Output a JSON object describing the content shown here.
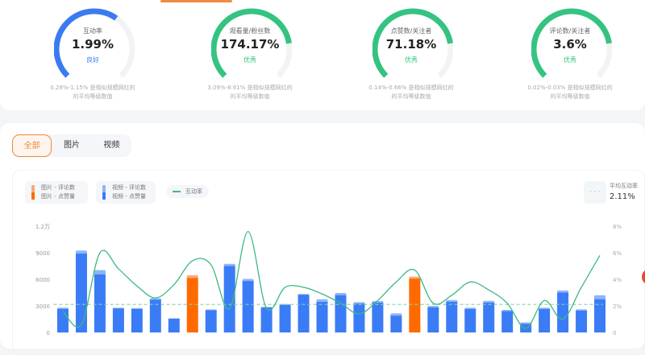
{
  "metrics": [
    {
      "label": "互动率",
      "value": "1.99%",
      "level": "良好",
      "color": "#3a7cf0",
      "fill": 0.63,
      "desc1": "0.28%-1.15% 是相似规模网红的",
      "desc2": "的平均等级数值"
    },
    {
      "label": "观看量/粉丝数",
      "value": "174.17%",
      "level": "优秀",
      "color": "#34c381",
      "fill": 0.8,
      "desc1": "3.09%-8.61% 是相似规模网红的",
      "desc2": "的平均等级数值"
    },
    {
      "label": "点赞数/关注者",
      "value": "71.18%",
      "level": "优秀",
      "color": "#34c381",
      "fill": 0.8,
      "desc1": "0.14%-0.66% 是相似规模网红的",
      "desc2": "的平均等级数值"
    },
    {
      "label": "评论数/关注者",
      "value": "3.6%",
      "level": "优秀",
      "color": "#34c381",
      "fill": 0.8,
      "desc1": "0.02%-0.03% 是相似规模网红的",
      "desc2": "的平均等级数值"
    }
  ],
  "tabs": [
    "全部",
    "图片",
    "视频"
  ],
  "legend": {
    "image_comments": "图片 - 评论数",
    "image_likes": "图片 - 点赞量",
    "video_comments": "视频 - 评论数",
    "video_likes": "视频 - 点赞量",
    "rate": "互动率",
    "avg_label": "平均互动率",
    "avg_value": "2.11%",
    "avg_icon": "- - -"
  },
  "chart_data": {
    "type": "bar+line",
    "left_axis": {
      "ticks": [
        "0",
        "3000",
        "6000",
        "9000",
        "1.2万"
      ],
      "range": [
        0,
        12000
      ]
    },
    "right_axis": {
      "ticks": [
        "0",
        "2%",
        "4%",
        "6%",
        "8%"
      ],
      "range": [
        0,
        8
      ]
    },
    "average_rate": 2.11,
    "grid": false,
    "colors": {
      "video_likes": "#3a7cf6",
      "video_comments": "#8db4fa",
      "image_likes": "#ff6a00",
      "image_comments": "#f9a77a",
      "rate": "#3cba7f"
    },
    "types": [
      "v",
      "v",
      "v",
      "v",
      "v",
      "v",
      "v",
      "i",
      "v",
      "v",
      "v",
      "v",
      "v",
      "v",
      "v",
      "v",
      "v",
      "v",
      "v",
      "i",
      "v",
      "v",
      "v",
      "v",
      "v",
      "v",
      "v",
      "v",
      "v",
      "v"
    ],
    "likes": [
      2650,
      8900,
      6550,
      2700,
      2650,
      3700,
      1550,
      6150,
      2500,
      7500,
      5800,
      2800,
      3100,
      4250,
      3450,
      4200,
      3250,
      3360,
      1890,
      6060,
      2820,
      3450,
      2640,
      3360,
      2400,
      960,
      2640,
      4500,
      2460,
      3750
    ],
    "comments": [
      150,
      350,
      500,
      100,
      100,
      150,
      50,
      300,
      100,
      250,
      250,
      100,
      100,
      100,
      300,
      250,
      170,
      180,
      270,
      240,
      180,
      210,
      160,
      210,
      150,
      180,
      160,
      240,
      150,
      450
    ],
    "rate": [
      1.6,
      0.6,
      6.0,
      4.8,
      3.5,
      2.6,
      3.6,
      5.4,
      5.1,
      1.8,
      7.6,
      1.8,
      3.4,
      3.4,
      2.9,
      2.2,
      1.4,
      2.4,
      3.8,
      4.7,
      2.2,
      2.8,
      3.8,
      3.2,
      2.2,
      0.3,
      2.4,
      1.0,
      3.4,
      5.8
    ]
  }
}
